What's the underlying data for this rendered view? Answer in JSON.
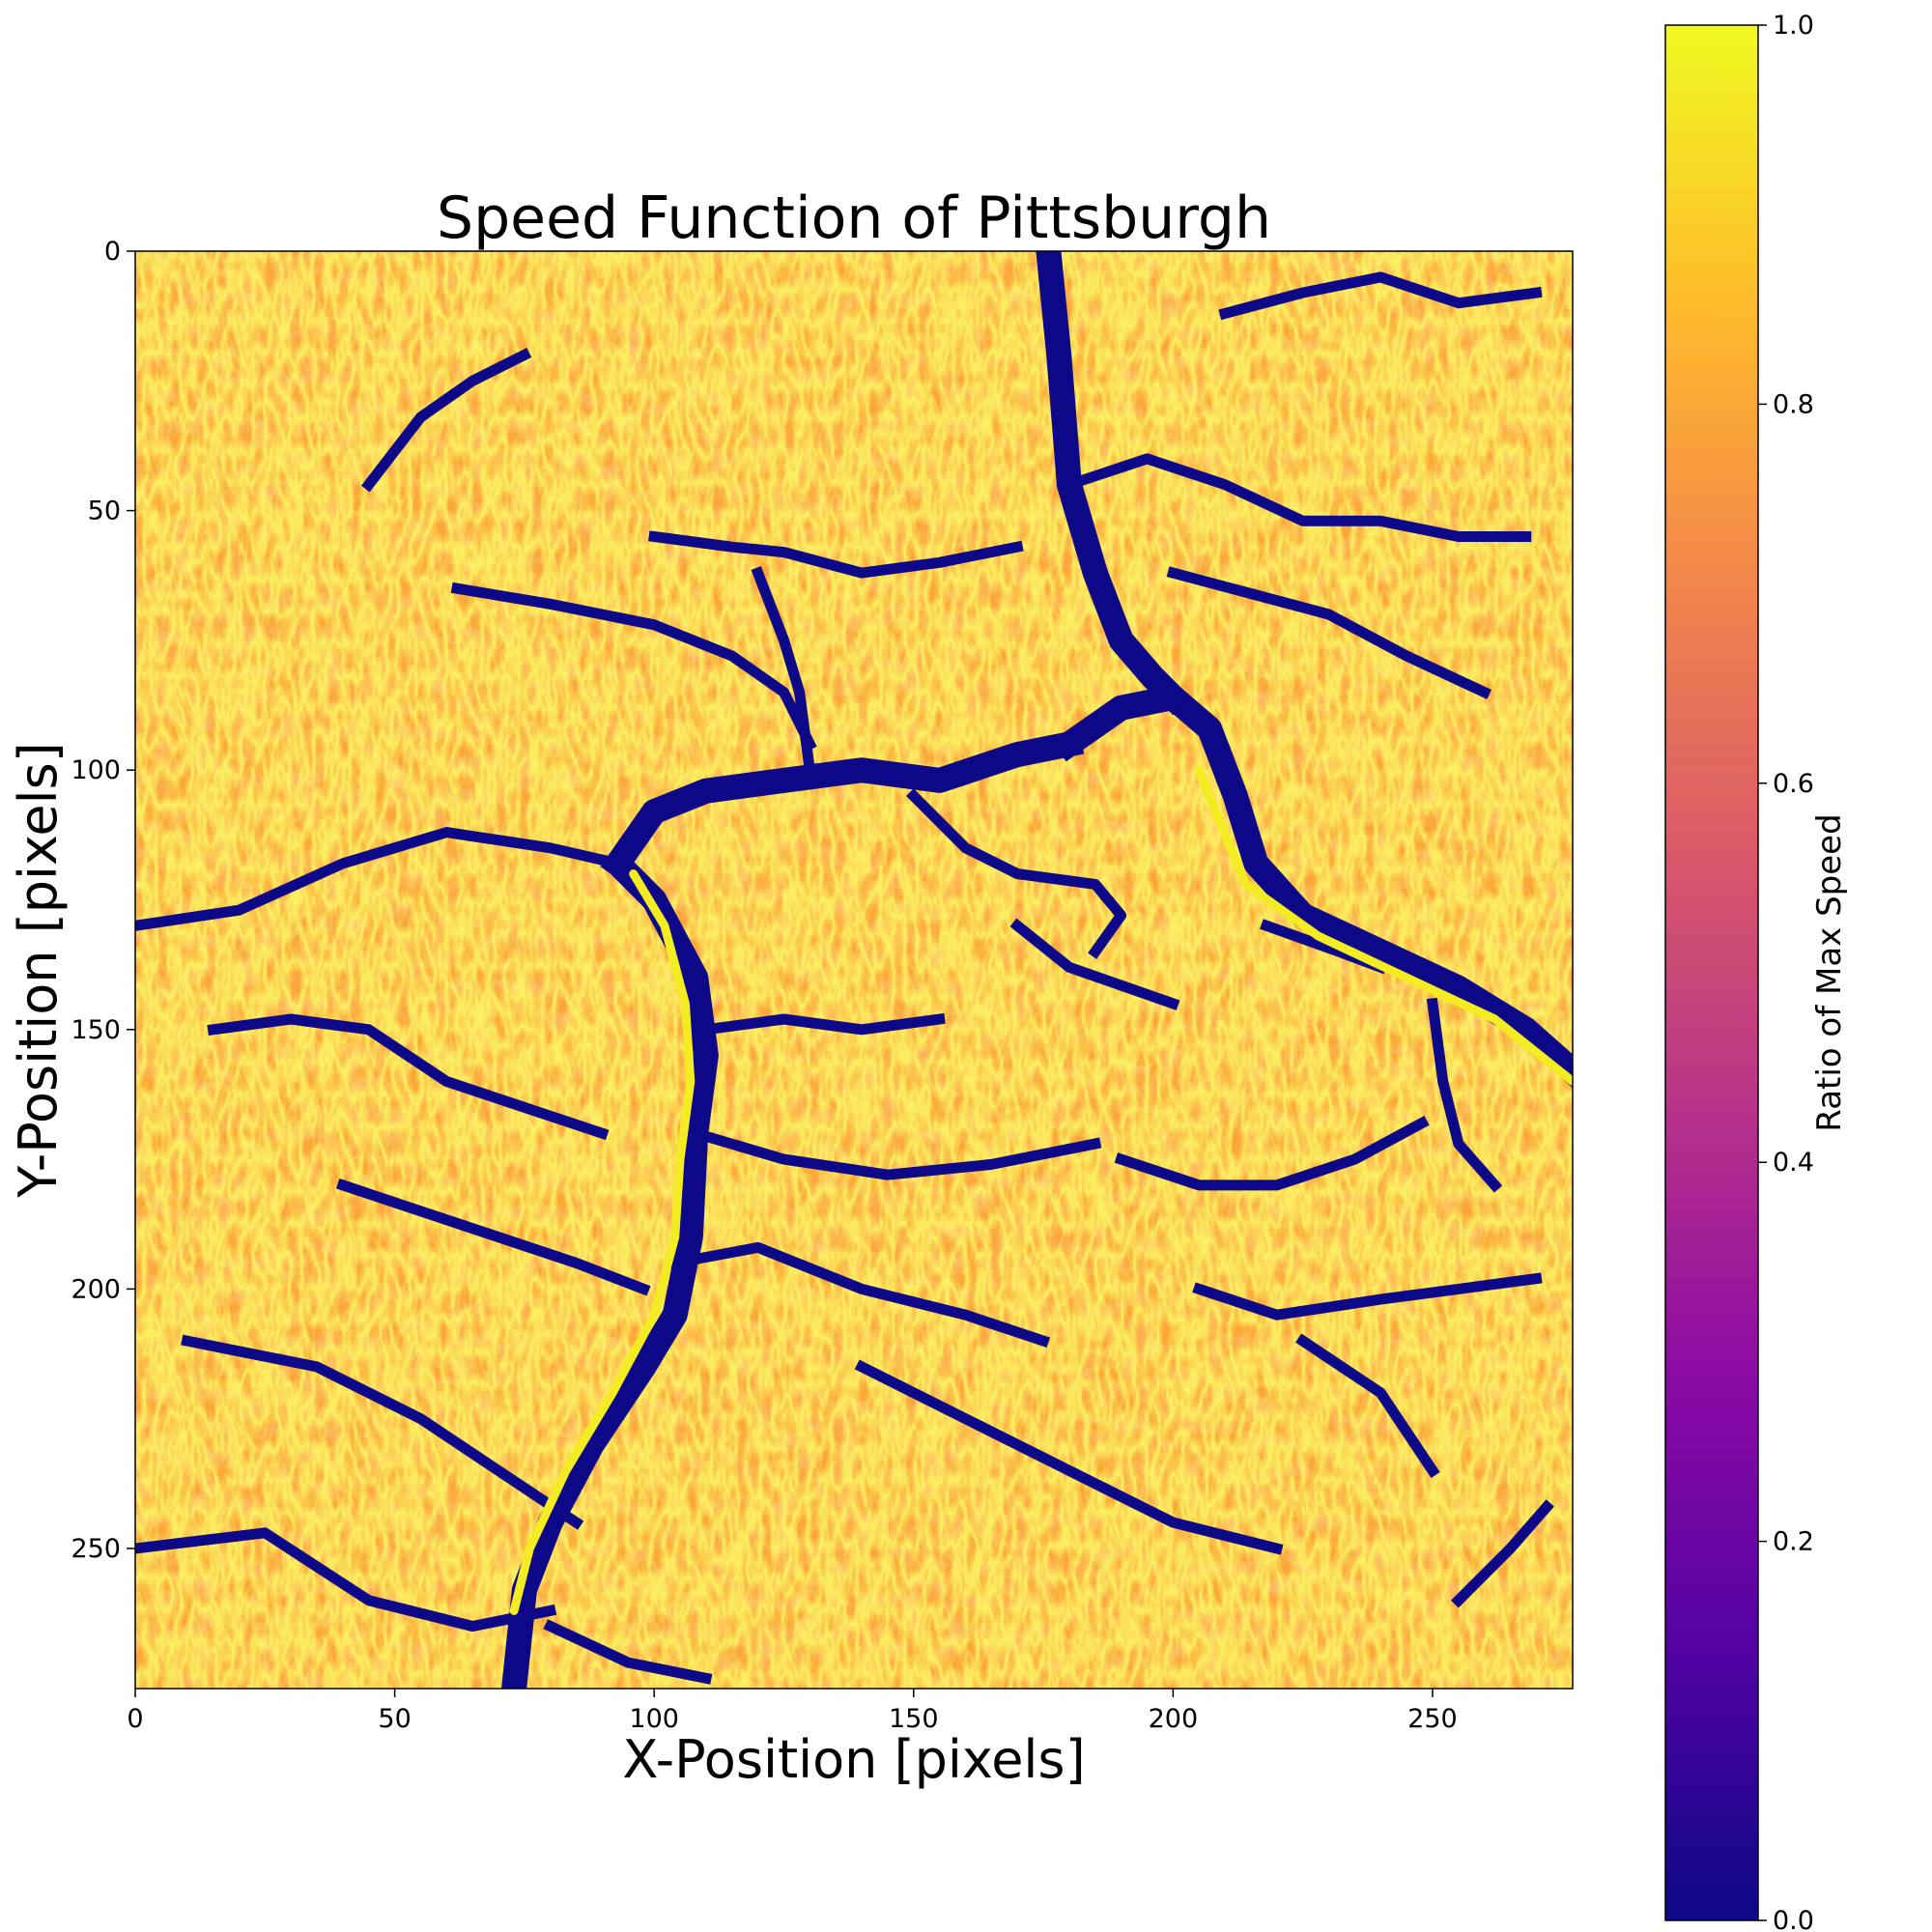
{
  "chart_data": {
    "type": "heatmap",
    "title": "Speed Function of Pittsburgh",
    "xlabel": "X-Position [pixels]",
    "ylabel": "Y-Position [pixels]",
    "xlim": [
      0,
      277
    ],
    "ylim": [
      277,
      0
    ],
    "x_ticks": [
      0,
      50,
      100,
      150,
      200,
      250
    ],
    "y_ticks": [
      0,
      50,
      100,
      150,
      200,
      250
    ],
    "grid": false,
    "colormap": "plasma",
    "colormap_stops": [
      "#0d0887",
      "#5302a3",
      "#8b0aa5",
      "#b83289",
      "#db5c68",
      "#f48849",
      "#febd2a",
      "#f0f921"
    ],
    "colorbar": {
      "label": "Ratio of Max Speed",
      "range": [
        0.0,
        1.0
      ],
      "ticks": [
        "0.0",
        "0.2",
        "0.4",
        "0.6",
        "0.8",
        "1.0"
      ]
    },
    "background_value": 0.85,
    "field_description_values": "Values mostly 0.75–0.95 (orange/yellow) with narrow low-speed (~0.0) channels tracing rivers and streams; main rivers themselves show high values (~0.95) bordered by ~0.0 banks.",
    "low_speed_channels": [
      {
        "name": "river-ohio-north",
        "value": 0.0,
        "points": [
          [
            93,
            118
          ],
          [
            100,
            108
          ],
          [
            110,
            104
          ],
          [
            125,
            102
          ],
          [
            140,
            100
          ],
          [
            155,
            102
          ],
          [
            170,
            97
          ],
          [
            180,
            95
          ]
        ]
      },
      {
        "name": "river-allegheny",
        "value": 0.0,
        "points": [
          [
            180,
            95
          ],
          [
            190,
            88
          ],
          [
            200,
            86
          ],
          [
            207,
            92
          ],
          [
            212,
            105
          ],
          [
            216,
            118
          ],
          [
            225,
            128
          ],
          [
            240,
            135
          ],
          [
            255,
            142
          ],
          [
            268,
            150
          ],
          [
            277,
            158
          ]
        ]
      },
      {
        "name": "river-north-branch",
        "value": 0.0,
        "points": [
          [
            176,
            0
          ],
          [
            178,
            20
          ],
          [
            180,
            45
          ],
          [
            185,
            62
          ],
          [
            190,
            75
          ],
          [
            196,
            82
          ],
          [
            200,
            86
          ]
        ]
      },
      {
        "name": "river-monongahela",
        "value": 0.0,
        "points": [
          [
            93,
            118
          ],
          [
            100,
            125
          ],
          [
            108,
            140
          ],
          [
            110,
            155
          ],
          [
            108,
            170
          ],
          [
            107,
            190
          ],
          [
            104,
            205
          ],
          [
            98,
            215
          ],
          [
            88,
            230
          ],
          [
            80,
            245
          ],
          [
            75,
            258
          ],
          [
            73,
            277
          ]
        ]
      },
      {
        "name": "creek-west-1",
        "value": 0.0,
        "points": [
          [
            0,
            130
          ],
          [
            20,
            127
          ],
          [
            40,
            118
          ],
          [
            60,
            112
          ],
          [
            80,
            115
          ],
          [
            93,
            118
          ]
        ]
      },
      {
        "name": "creek-west-2",
        "value": 0.0,
        "points": [
          [
            10,
            210
          ],
          [
            35,
            215
          ],
          [
            55,
            225
          ],
          [
            70,
            235
          ],
          [
            85,
            245
          ]
        ]
      },
      {
        "name": "creek-west-3",
        "value": 0.0,
        "points": [
          [
            0,
            250
          ],
          [
            25,
            247
          ],
          [
            45,
            260
          ],
          [
            65,
            265
          ],
          [
            80,
            262
          ]
        ]
      },
      {
        "name": "creek-south-1",
        "value": 0.0,
        "points": [
          [
            80,
            265
          ],
          [
            95,
            272
          ],
          [
            110,
            275
          ]
        ]
      },
      {
        "name": "creek-center-1",
        "value": 0.0,
        "points": [
          [
            108,
            170
          ],
          [
            125,
            175
          ],
          [
            145,
            178
          ],
          [
            165,
            176
          ],
          [
            185,
            172
          ]
        ]
      },
      {
        "name": "creek-center-2",
        "value": 0.0,
        "points": [
          [
            104,
            195
          ],
          [
            120,
            192
          ],
          [
            140,
            200
          ],
          [
            160,
            205
          ],
          [
            175,
            210
          ]
        ]
      },
      {
        "name": "creek-center-3",
        "value": 0.0,
        "points": [
          [
            110,
            150
          ],
          [
            125,
            148
          ],
          [
            140,
            150
          ],
          [
            155,
            148
          ]
        ]
      },
      {
        "name": "creek-north-1",
        "value": 0.0,
        "points": [
          [
            62,
            65
          ],
          [
            80,
            68
          ],
          [
            100,
            72
          ],
          [
            115,
            78
          ],
          [
            125,
            85
          ],
          [
            130,
            95
          ]
        ]
      },
      {
        "name": "creek-north-2",
        "value": 0.0,
        "points": [
          [
            100,
            55
          ],
          [
            115,
            57
          ],
          [
            125,
            58
          ],
          [
            140,
            62
          ],
          [
            155,
            60
          ],
          [
            170,
            57
          ]
        ]
      },
      {
        "name": "creek-north-3",
        "value": 0.0,
        "points": [
          [
            45,
            45
          ],
          [
            55,
            32
          ],
          [
            65,
            25
          ],
          [
            75,
            20
          ]
        ]
      },
      {
        "name": "creek-north-4",
        "value": 0.0,
        "points": [
          [
            130,
            100
          ],
          [
            128,
            85
          ],
          [
            125,
            75
          ],
          [
            120,
            62
          ]
        ]
      },
      {
        "name": "creek-ne-1",
        "value": 0.0,
        "points": [
          [
            180,
            45
          ],
          [
            195,
            40
          ],
          [
            210,
            45
          ],
          [
            225,
            52
          ],
          [
            240,
            52
          ],
          [
            255,
            55
          ],
          [
            268,
            55
          ]
        ]
      },
      {
        "name": "creek-ne-2",
        "value": 0.0,
        "points": [
          [
            200,
            62
          ],
          [
            215,
            66
          ],
          [
            230,
            70
          ],
          [
            245,
            78
          ],
          [
            260,
            85
          ]
        ]
      },
      {
        "name": "creek-ne-3",
        "value": 0.0,
        "points": [
          [
            210,
            12
          ],
          [
            225,
            8
          ],
          [
            240,
            5
          ],
          [
            255,
            10
          ],
          [
            270,
            8
          ]
        ]
      },
      {
        "name": "creek-east-1",
        "value": 0.0,
        "points": [
          [
            150,
            105
          ],
          [
            160,
            115
          ],
          [
            170,
            120
          ],
          [
            185,
            122
          ],
          [
            190,
            128
          ],
          [
            185,
            135
          ]
        ]
      },
      {
        "name": "creek-east-2",
        "value": 0.0,
        "points": [
          [
            170,
            130
          ],
          [
            180,
            138
          ],
          [
            200,
            145
          ]
        ]
      },
      {
        "name": "creek-se-1",
        "value": 0.0,
        "points": [
          [
            190,
            175
          ],
          [
            205,
            180
          ],
          [
            220,
            180
          ],
          [
            235,
            175
          ],
          [
            248,
            168
          ]
        ]
      },
      {
        "name": "creek-se-2",
        "value": 0.0,
        "points": [
          [
            205,
            200
          ],
          [
            220,
            205
          ],
          [
            240,
            202
          ],
          [
            255,
            200
          ],
          [
            270,
            198
          ]
        ]
      },
      {
        "name": "creek-se-3",
        "value": 0.0,
        "points": [
          [
            140,
            215
          ],
          [
            160,
            225
          ],
          [
            180,
            235
          ],
          [
            200,
            245
          ],
          [
            220,
            250
          ]
        ]
      },
      {
        "name": "creek-se-4",
        "value": 0.0,
        "points": [
          [
            225,
            210
          ],
          [
            240,
            220
          ],
          [
            250,
            235
          ]
        ]
      },
      {
        "name": "creek-se-5",
        "value": 0.0,
        "points": [
          [
            255,
            260
          ],
          [
            265,
            250
          ],
          [
            272,
            242
          ]
        ]
      },
      {
        "name": "creek-east-3",
        "value": 0.0,
        "points": [
          [
            250,
            145
          ],
          [
            252,
            160
          ],
          [
            255,
            172
          ],
          [
            262,
            180
          ]
        ]
      },
      {
        "name": "creek-east-4",
        "value": 0.0,
        "points": [
          [
            218,
            130
          ],
          [
            232,
            135
          ],
          [
            240,
            138
          ]
        ]
      },
      {
        "name": "creek-west-4",
        "value": 0.0,
        "points": [
          [
            15,
            150
          ],
          [
            30,
            148
          ],
          [
            45,
            150
          ],
          [
            60,
            160
          ],
          [
            75,
            165
          ],
          [
            90,
            170
          ]
        ]
      },
      {
        "name": "creek-west-5",
        "value": 0.0,
        "points": [
          [
            40,
            180
          ],
          [
            55,
            185
          ],
          [
            70,
            190
          ],
          [
            85,
            195
          ],
          [
            98,
            200
          ]
        ]
      }
    ],
    "high_speed_rivers": [
      {
        "name": "river-monongahela-water",
        "value": 0.97,
        "points": [
          [
            96,
            120
          ],
          [
            102,
            130
          ],
          [
            106,
            145
          ],
          [
            107,
            160
          ],
          [
            105,
            175
          ],
          [
            104,
            190
          ],
          [
            100,
            205
          ],
          [
            92,
            220
          ],
          [
            83,
            235
          ],
          [
            76,
            250
          ],
          [
            73,
            262
          ]
        ]
      },
      {
        "name": "river-allegheny-water",
        "value": 0.97,
        "points": [
          [
            205,
            100
          ],
          [
            209,
            110
          ],
          [
            214,
            122
          ],
          [
            228,
            132
          ],
          [
            245,
            140
          ],
          [
            262,
            148
          ],
          [
            277,
            160
          ]
        ]
      }
    ]
  }
}
